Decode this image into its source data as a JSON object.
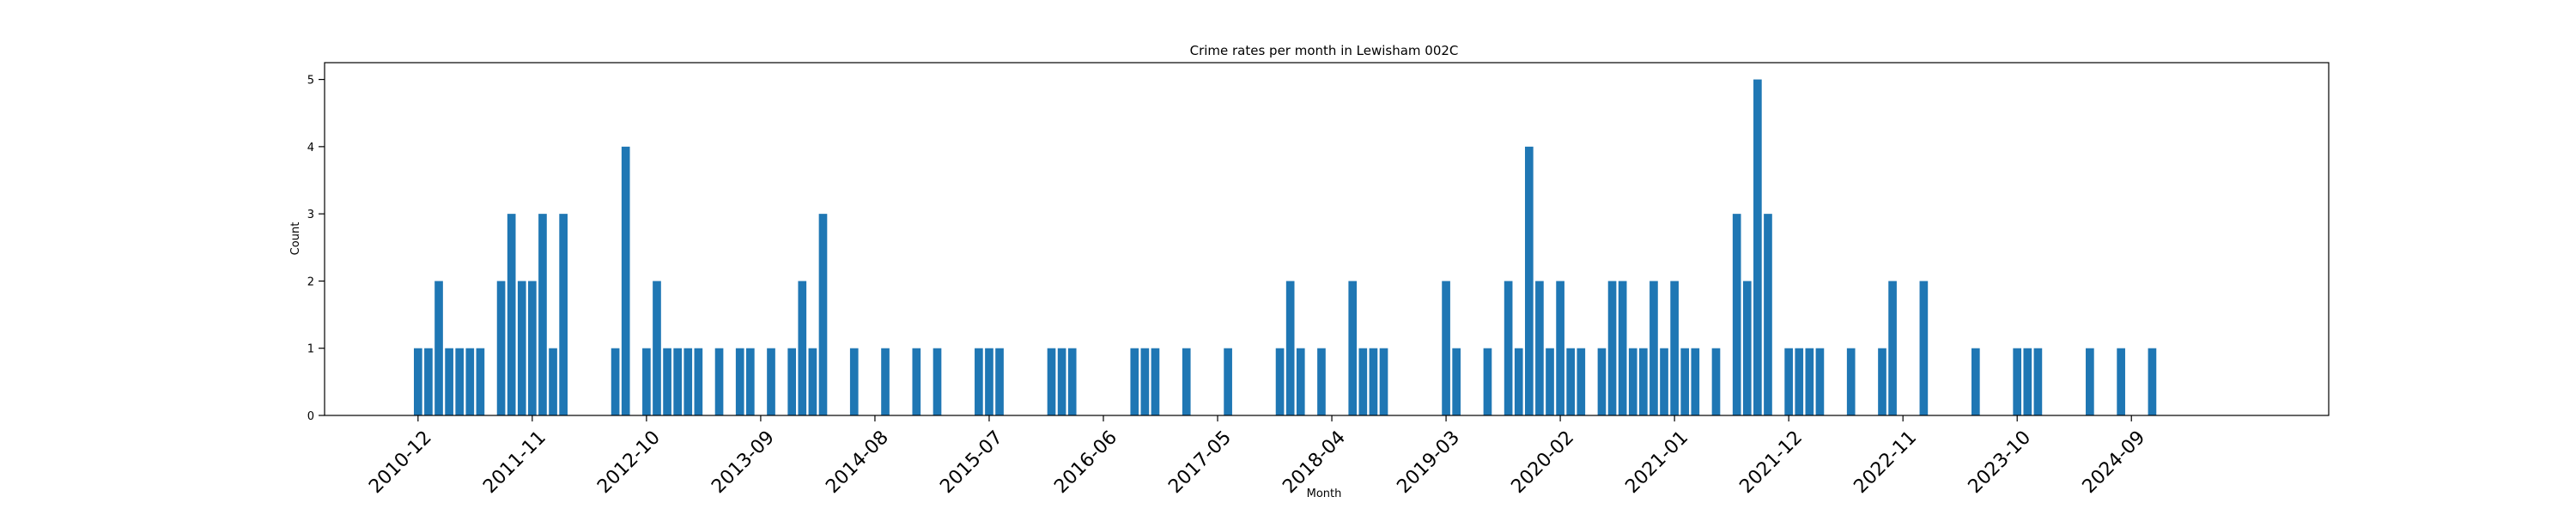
{
  "chart_data": {
    "type": "bar",
    "title": "Crime rates per month in Lewisham 002C",
    "xlabel": "Month",
    "ylabel": "Count",
    "ylim": [
      0,
      5.25
    ],
    "yticks": [
      0,
      1,
      2,
      3,
      4,
      5
    ],
    "xlim": [
      "2010-03",
      "2026-04"
    ],
    "xtick_labels": [
      "2010-12",
      "2011-11",
      "2012-10",
      "2013-09",
      "2014-08",
      "2015-07",
      "2016-06",
      "2017-05",
      "2018-04",
      "2019-03",
      "2020-02",
      "2021-01",
      "2021-12",
      "2022-11",
      "2023-10",
      "2024-09"
    ],
    "grid": false,
    "legend": "none",
    "bar_color": "#1f77b4",
    "x": [
      "2010-12",
      "2011-01",
      "2011-02",
      "2011-03",
      "2011-04",
      "2011-05",
      "2011-06",
      "2011-08",
      "2011-09",
      "2011-10",
      "2011-11",
      "2011-12",
      "2012-01",
      "2012-02",
      "2012-07",
      "2012-08",
      "2012-10",
      "2012-11",
      "2012-12",
      "2013-01",
      "2013-02",
      "2013-03",
      "2013-05",
      "2013-07",
      "2013-08",
      "2013-10",
      "2013-12",
      "2014-01",
      "2014-02",
      "2014-03",
      "2014-06",
      "2014-09",
      "2014-12",
      "2015-02",
      "2015-06",
      "2015-07",
      "2015-08",
      "2016-01",
      "2016-02",
      "2016-03",
      "2016-09",
      "2016-10",
      "2016-11",
      "2017-02",
      "2017-06",
      "2017-11",
      "2017-12",
      "2018-01",
      "2018-03",
      "2018-06",
      "2018-07",
      "2018-08",
      "2018-09",
      "2019-03",
      "2019-04",
      "2019-07",
      "2019-09",
      "2019-10",
      "2019-11",
      "2019-12",
      "2020-01",
      "2020-02",
      "2020-03",
      "2020-04",
      "2020-06",
      "2020-07",
      "2020-08",
      "2020-09",
      "2020-10",
      "2020-11",
      "2020-12",
      "2021-01",
      "2021-02",
      "2021-03",
      "2021-05",
      "2021-07",
      "2021-08",
      "2021-09",
      "2021-10",
      "2021-12",
      "2022-01",
      "2022-02",
      "2022-03",
      "2022-06",
      "2022-09",
      "2022-10",
      "2023-01",
      "2023-06",
      "2023-10",
      "2023-11",
      "2023-12",
      "2024-05",
      "2024-08",
      "2024-11"
    ],
    "values": [
      1,
      1,
      2,
      1,
      1,
      1,
      1,
      2,
      3,
      2,
      2,
      3,
      1,
      3,
      1,
      4,
      1,
      2,
      1,
      1,
      1,
      1,
      1,
      1,
      1,
      1,
      1,
      2,
      1,
      3,
      1,
      1,
      1,
      1,
      1,
      1,
      1,
      1,
      1,
      1,
      1,
      1,
      1,
      1,
      1,
      1,
      2,
      1,
      1,
      2,
      1,
      1,
      1,
      2,
      1,
      1,
      2,
      1,
      4,
      2,
      1,
      2,
      1,
      1,
      1,
      2,
      2,
      1,
      1,
      2,
      1,
      2,
      1,
      1,
      1,
      3,
      2,
      5,
      3,
      1,
      1,
      1,
      1,
      1,
      1,
      2,
      2,
      1,
      1,
      1,
      1,
      1,
      1,
      1
    ]
  }
}
